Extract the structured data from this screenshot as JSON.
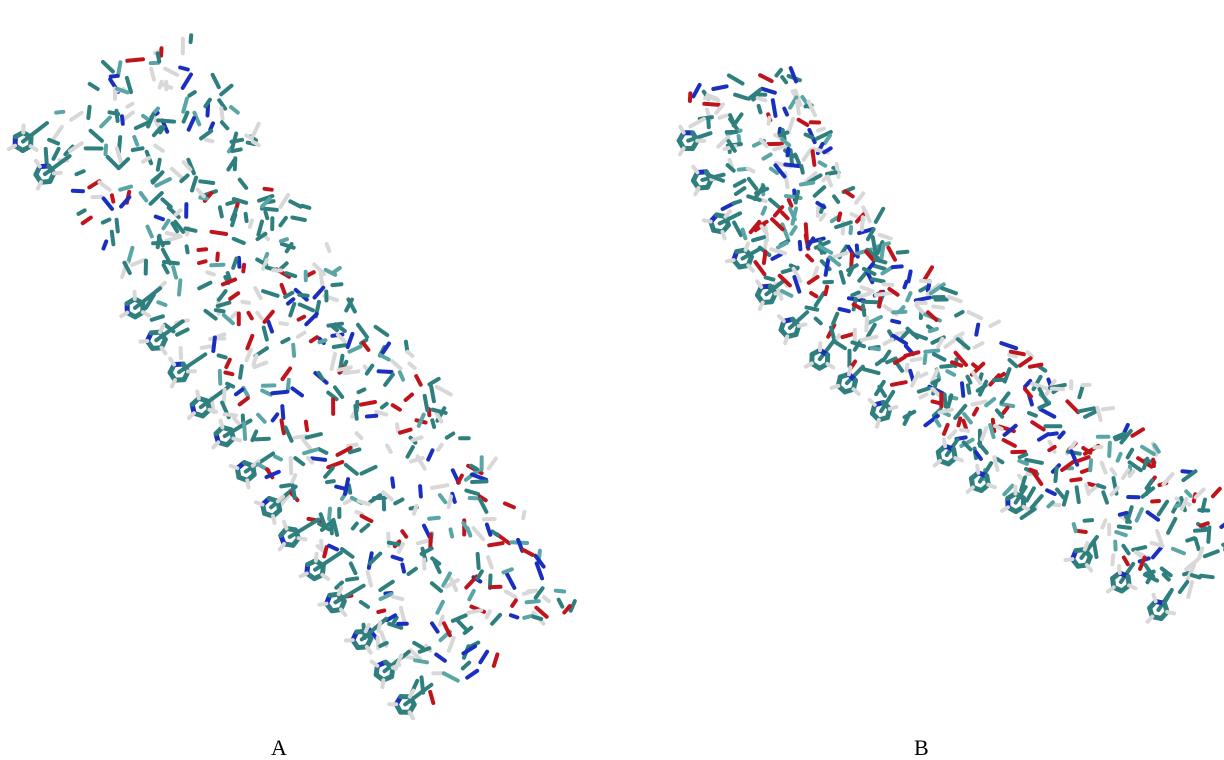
{
  "figure": {
    "panels": [
      {
        "label": "A",
        "subject": "molecular-model-stick-representation",
        "shape": "straight-strand"
      },
      {
        "label": "B",
        "subject": "molecular-model-stick-representation",
        "shape": "curved-strand"
      }
    ],
    "colors": {
      "carbon": "#2f7f7f",
      "carbon_light": "#5aa6a6",
      "oxygen": "#c0141c",
      "nitrogen": "#1a2fbf",
      "hydrogen": "#d8d8d8",
      "background": "#ffffff",
      "label": "#000000"
    }
  }
}
